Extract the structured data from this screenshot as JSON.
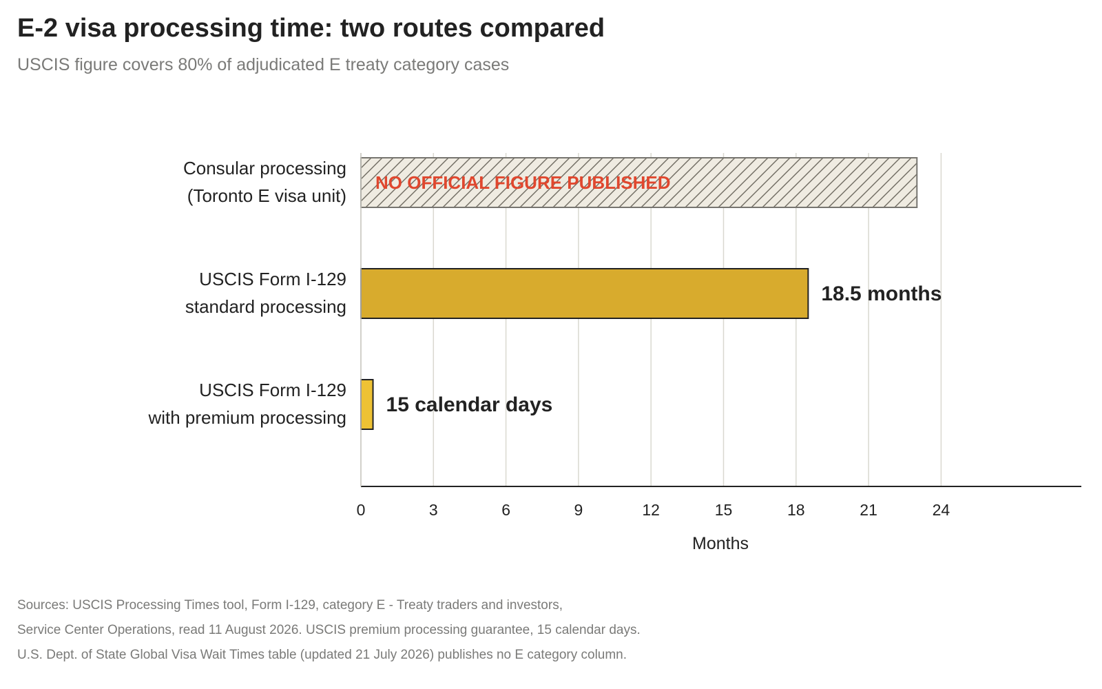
{
  "title": "E-2 visa processing time: two routes compared",
  "subtitle": "USCIS figure covers 80% of adjudicated E treaty category cases",
  "chart_data": {
    "type": "bar",
    "orientation": "horizontal",
    "xlabel": "Months",
    "xlim": [
      0,
      30
    ],
    "xticks": [
      0,
      3,
      6,
      9,
      12,
      15,
      18,
      21,
      24
    ],
    "grid": true,
    "categories": [
      [
        "Consular processing",
        "(Toronto E visa unit)"
      ],
      [
        "USCIS Form I-129",
        "standard processing"
      ],
      [
        "USCIS Form I-129",
        "with premium processing"
      ]
    ],
    "values": [
      null,
      18.5,
      0.5
    ],
    "placeholder_extent": 23,
    "data_labels": [
      "NO OFFICIAL FIGURE PUBLISHED",
      "18.5 months",
      "15 calendar days"
    ],
    "bar_styles": [
      "hatched",
      "solid",
      "solid"
    ],
    "colors": {
      "standard": "#d8ab2d",
      "premium": "#eec234",
      "hatched_fill": "#efebe1",
      "hatch_stroke": "#6e6a60",
      "outline": "#222222",
      "placeholder_text": "#e0472e",
      "grid": "#d9d8d0",
      "axis": "#222222"
    }
  },
  "sources": [
    "Sources: USCIS Processing Times tool, Form I-129, category E - Treaty traders and investors,",
    "Service Center Operations, read 11 August 2026. USCIS premium processing guarantee, 15 calendar days.",
    "U.S. Dept. of State Global Visa Wait Times table (updated 21 July 2026) publishes no E category column."
  ]
}
